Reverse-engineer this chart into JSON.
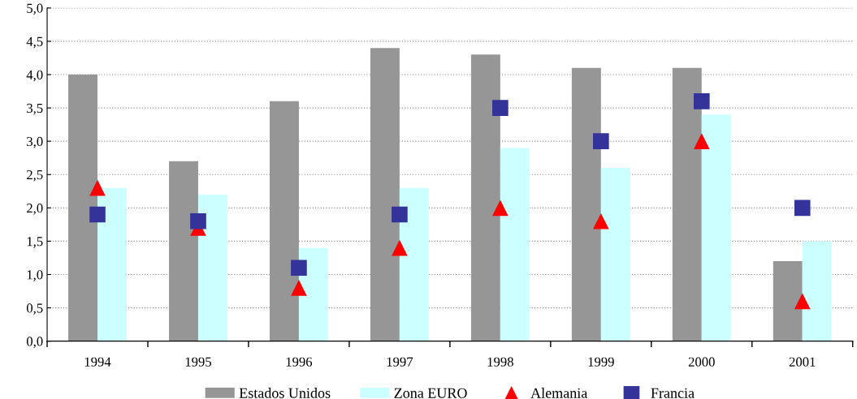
{
  "chart_data": {
    "type": "bar",
    "categories": [
      "1994",
      "1995",
      "1996",
      "1997",
      "1998",
      "1999",
      "2000",
      "2001"
    ],
    "series": [
      {
        "name": "Estados Unidos",
        "color": "#969696",
        "values": [
          4.0,
          2.7,
          3.6,
          4.4,
          4.3,
          4.1,
          4.1,
          1.2
        ]
      },
      {
        "name": "Zona EURO",
        "color": "#ccffff",
        "values": [
          2.3,
          2.2,
          1.4,
          2.3,
          2.9,
          2.6,
          3.4,
          1.5
        ]
      },
      {
        "name": "Alemania",
        "type": "scatter",
        "marker": "triangle",
        "color": "#ff0000",
        "values": [
          2.3,
          1.7,
          0.8,
          1.4,
          2.0,
          1.8,
          3.0,
          0.6
        ]
      },
      {
        "name": "Francia",
        "type": "scatter",
        "marker": "square",
        "color": "#333399",
        "values": [
          1.9,
          1.8,
          1.1,
          1.9,
          3.5,
          3.0,
          3.6,
          2.0
        ]
      }
    ],
    "ylim": [
      0,
      5
    ],
    "yticks": [
      {
        "value": 0,
        "label": "0,0"
      },
      {
        "value": 0.5,
        "label": "0,5"
      },
      {
        "value": 1,
        "label": "1,0"
      },
      {
        "value": 1.5,
        "label": "1,5"
      },
      {
        "value": 2,
        "label": "2,0"
      },
      {
        "value": 2.5,
        "label": "2,5"
      },
      {
        "value": 3,
        "label": "3,0"
      },
      {
        "value": 3.5,
        "label": "3,5"
      },
      {
        "value": 4,
        "label": "4,0"
      },
      {
        "value": 4.5,
        "label": "4,5"
      },
      {
        "value": 5,
        "label": "5,0"
      }
    ],
    "grid": "y",
    "legend": "bottom"
  }
}
